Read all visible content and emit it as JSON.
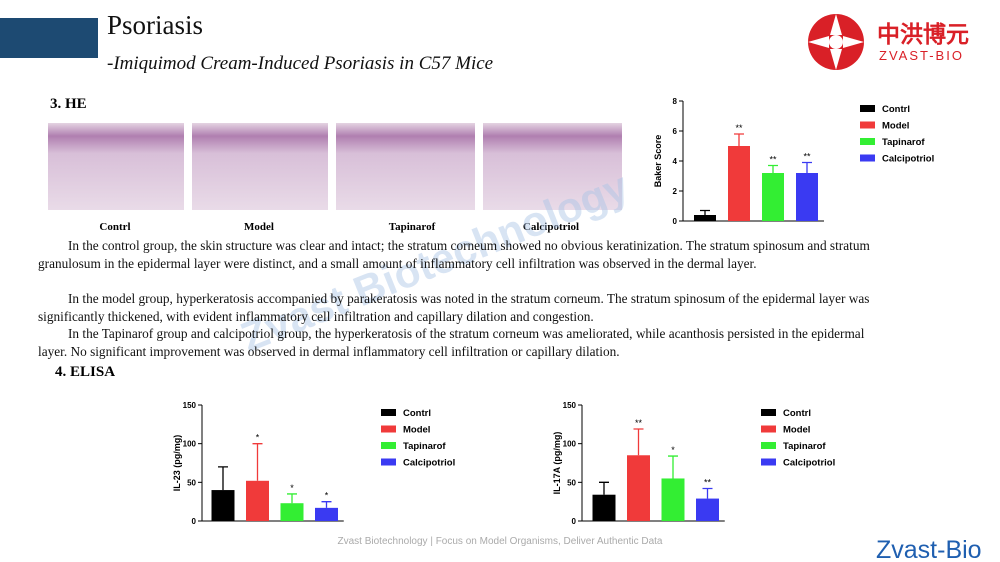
{
  "header": {
    "title": "Psoriasis",
    "subtitle": "-Imiquimod Cream-Induced Psoriasis in C57 Mice"
  },
  "logo": {
    "cn": "中洪博元",
    "en": "ZVAST-BIO"
  },
  "sections": {
    "he": {
      "heading": "3. HE",
      "image_labels": [
        "Contrl",
        "Model",
        "Tapinarof",
        "Calcipotriol"
      ],
      "paragraphs": [
        "In the control group, the skin structure was clear and intact; the stratum corneum showed no obvious keratinization. The stratum spinosum and stratum granulosum in the epidermal layer were distinct, and a small amount of inflammatory cell infiltration was observed in the dermal layer.",
        "In the model group, hyperkeratosis accompanied by parakeratosis was noted in the stratum corneum. The stratum spinosum of the epidermal layer was significantly thickened, with evident inflammatory cell infiltration and capillary dilation and congestion.",
        "In the Tapinarof group and calcipotriol group, the hyperkeratosis of the stratum corneum was ameliorated, while acanthosis persisted in the epidermal layer. No significant improvement was observed in dermal inflammatory cell infiltration or capillary dilation."
      ]
    },
    "elisa": {
      "heading": "4. ELISA"
    }
  },
  "chart_data": [
    {
      "type": "bar",
      "y_label": "Baker Score",
      "categories": [
        "Contrl",
        "Model",
        "Tapinarof",
        "Calcipotriol"
      ],
      "values": [
        0.4,
        5.0,
        3.2,
        3.2
      ],
      "errors": [
        0.3,
        0.8,
        0.5,
        0.7
      ],
      "annotations": [
        null,
        "**",
        "**",
        "**"
      ],
      "colors": [
        "#000000",
        "#f03a3a",
        "#33ee33",
        "#3a3af2"
      ],
      "ylim": [
        0,
        8
      ],
      "yticks": [
        0,
        2,
        4,
        6,
        8
      ]
    },
    {
      "type": "bar",
      "y_label": "IL-23  (pg/mg)",
      "categories": [
        "Contrl",
        "Model",
        "Tapinarof",
        "Calcipotriol"
      ],
      "values": [
        40,
        52,
        23,
        17
      ],
      "errors": [
        30,
        48,
        12,
        8
      ],
      "annotations": [
        null,
        "*",
        "*",
        "*"
      ],
      "colors": [
        "#000000",
        "#f03a3a",
        "#33ee33",
        "#3a3af2"
      ],
      "ylim": [
        0,
        150
      ],
      "yticks": [
        0,
        50,
        100,
        150
      ]
    },
    {
      "type": "bar",
      "y_label": "IL-17A  (pg/mg)",
      "categories": [
        "Contrl",
        "Model",
        "Tapinarof",
        "Calcipotriol"
      ],
      "values": [
        34,
        85,
        55,
        29
      ],
      "errors": [
        16,
        34,
        29,
        13
      ],
      "annotations": [
        null,
        "**",
        "*",
        "**"
      ],
      "colors": [
        "#000000",
        "#f03a3a",
        "#33ee33",
        "#3a3af2"
      ],
      "ylim": [
        0,
        150
      ],
      "yticks": [
        0,
        50,
        100,
        150
      ]
    }
  ],
  "watermark": "Zvast Biotechnology",
  "footer": "Zvast Biotechnology | Focus on Model Organisms, Deliver Authentic Data",
  "brand": "Zvast-Bio"
}
